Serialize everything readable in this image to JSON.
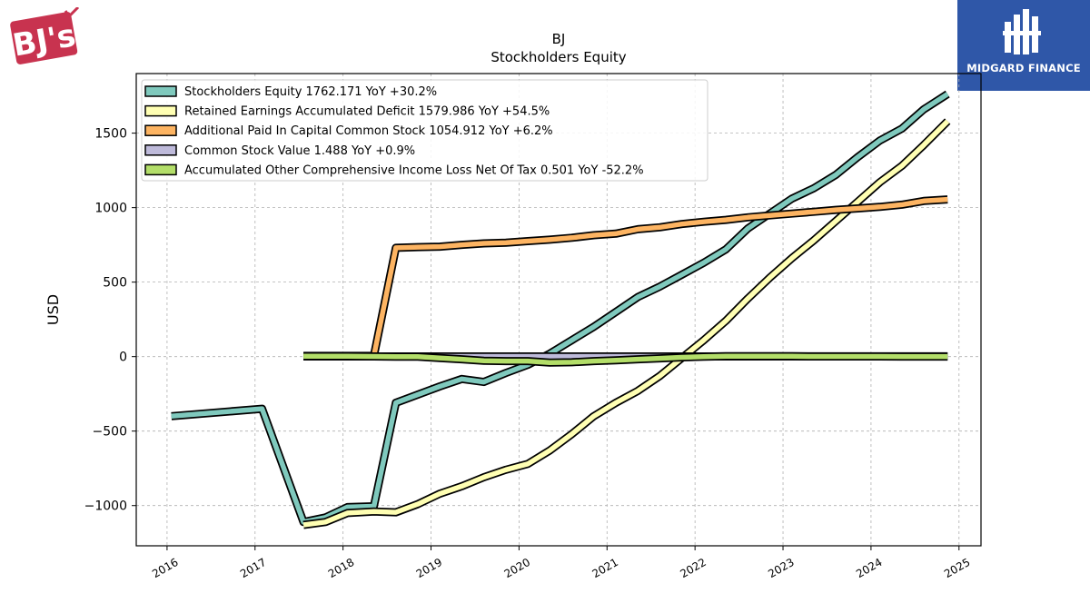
{
  "logos": {
    "left_text": "BJ's",
    "right_text": "MIDGARD FINANCE"
  },
  "chart_data": {
    "type": "line",
    "title": "BJ",
    "subtitle": "Stockholders  Equity",
    "xlabel": "",
    "ylabel": "USD",
    "xlim": [
      2015.65,
      2025.25
    ],
    "ylim": [
      -1270,
      1900
    ],
    "xticks": [
      "2016",
      "2017",
      "2018",
      "2019",
      "2020",
      "2021",
      "2022",
      "2023",
      "2024",
      "2025"
    ],
    "yticks": [
      -1000,
      -500,
      0,
      500,
      1000,
      1500
    ],
    "ytick_labels": [
      "−1000",
      "−500",
      "0",
      "500",
      "1000",
      "1500"
    ],
    "grid": true,
    "legend_position": "top-left",
    "series": [
      {
        "name": "Stockholders Equity  1762.171 YoY +30.2%",
        "color": "#7fc9bd",
        "points": [
          [
            2016.05,
            -400
          ],
          [
            2017.08,
            -350
          ],
          [
            2017.55,
            -1110
          ],
          [
            2017.8,
            -1080
          ],
          [
            2018.05,
            -1010
          ],
          [
            2018.35,
            -1005
          ],
          [
            2018.6,
            -310
          ],
          [
            2018.85,
            -255
          ],
          [
            2019.1,
            -200
          ],
          [
            2019.35,
            -150
          ],
          [
            2019.6,
            -170
          ],
          [
            2019.85,
            -110
          ],
          [
            2020.1,
            -55
          ],
          [
            2020.35,
            20
          ],
          [
            2020.6,
            110
          ],
          [
            2020.85,
            200
          ],
          [
            2021.1,
            300
          ],
          [
            2021.35,
            400
          ],
          [
            2021.6,
            470
          ],
          [
            2021.85,
            550
          ],
          [
            2022.1,
            630
          ],
          [
            2022.35,
            720
          ],
          [
            2022.6,
            860
          ],
          [
            2022.85,
            960
          ],
          [
            2023.1,
            1060
          ],
          [
            2023.35,
            1130
          ],
          [
            2023.6,
            1220
          ],
          [
            2023.85,
            1340
          ],
          [
            2024.1,
            1450
          ],
          [
            2024.35,
            1530
          ],
          [
            2024.6,
            1660
          ],
          [
            2024.87,
            1762.171
          ]
        ]
      },
      {
        "name": "Retained Earnings Accumulated Deficit  1579.986 YoY +54.5%",
        "color": "#ffffb3",
        "points": [
          [
            2017.55,
            -1130
          ],
          [
            2017.8,
            -1110
          ],
          [
            2018.05,
            -1050
          ],
          [
            2018.35,
            -1040
          ],
          [
            2018.6,
            -1045
          ],
          [
            2018.85,
            -990
          ],
          [
            2019.1,
            -920
          ],
          [
            2019.35,
            -870
          ],
          [
            2019.6,
            -810
          ],
          [
            2019.85,
            -760
          ],
          [
            2020.1,
            -720
          ],
          [
            2020.35,
            -630
          ],
          [
            2020.6,
            -520
          ],
          [
            2020.85,
            -400
          ],
          [
            2021.1,
            -310
          ],
          [
            2021.35,
            -230
          ],
          [
            2021.6,
            -130
          ],
          [
            2021.85,
            -10
          ],
          [
            2022.1,
            110
          ],
          [
            2022.35,
            240
          ],
          [
            2022.6,
            390
          ],
          [
            2022.85,
            530
          ],
          [
            2023.1,
            660
          ],
          [
            2023.35,
            780
          ],
          [
            2023.6,
            910
          ],
          [
            2023.85,
            1040
          ],
          [
            2024.1,
            1170
          ],
          [
            2024.35,
            1280
          ],
          [
            2024.6,
            1420
          ],
          [
            2024.87,
            1579.986
          ]
        ]
      },
      {
        "name": "Additional Paid In Capital Common Stock  1054.912 YoY +6.2%",
        "color": "#fdb462",
        "points": [
          [
            2017.55,
            5
          ],
          [
            2017.8,
            5
          ],
          [
            2018.05,
            5
          ],
          [
            2018.35,
            5
          ],
          [
            2018.6,
            730
          ],
          [
            2018.85,
            735
          ],
          [
            2019.1,
            738
          ],
          [
            2019.35,
            750
          ],
          [
            2019.6,
            760
          ],
          [
            2019.85,
            765
          ],
          [
            2020.1,
            775
          ],
          [
            2020.35,
            785
          ],
          [
            2020.6,
            798
          ],
          [
            2020.85,
            815
          ],
          [
            2021.1,
            825
          ],
          [
            2021.35,
            855
          ],
          [
            2021.6,
            868
          ],
          [
            2021.85,
            890
          ],
          [
            2022.1,
            905
          ],
          [
            2022.35,
            918
          ],
          [
            2022.6,
            935
          ],
          [
            2022.85,
            948
          ],
          [
            2023.1,
            960
          ],
          [
            2023.35,
            972
          ],
          [
            2023.6,
            985
          ],
          [
            2023.85,
            995
          ],
          [
            2024.1,
            1005
          ],
          [
            2024.35,
            1020
          ],
          [
            2024.6,
            1045
          ],
          [
            2024.87,
            1054.912
          ]
        ]
      },
      {
        "name": "Common Stock Value  1.488 YoY +0.9%",
        "color": "#bebada",
        "points": [
          [
            2017.55,
            1.3
          ],
          [
            2024.87,
            1.488
          ]
        ]
      },
      {
        "name": "Accumulated Other Comprehensive Income Loss Net Of Tax  0.501 YoY -52.2%",
        "color": "#b3de69",
        "points": [
          [
            2017.55,
            2
          ],
          [
            2017.8,
            3
          ],
          [
            2018.05,
            2
          ],
          [
            2018.35,
            1
          ],
          [
            2018.6,
            0
          ],
          [
            2018.85,
            0
          ],
          [
            2019.1,
            -10
          ],
          [
            2019.35,
            -18
          ],
          [
            2019.6,
            -28
          ],
          [
            2019.85,
            -30
          ],
          [
            2020.1,
            -30
          ],
          [
            2020.35,
            -40
          ],
          [
            2020.6,
            -38
          ],
          [
            2020.85,
            -30
          ],
          [
            2021.1,
            -25
          ],
          [
            2021.35,
            -18
          ],
          [
            2021.6,
            -12
          ],
          [
            2021.85,
            -5
          ],
          [
            2022.1,
            0
          ],
          [
            2022.35,
            2
          ],
          [
            2022.6,
            2
          ],
          [
            2022.85,
            2
          ],
          [
            2023.1,
            2
          ],
          [
            2023.35,
            1
          ],
          [
            2023.6,
            1
          ],
          [
            2023.85,
            1
          ],
          [
            2024.1,
            0.8
          ],
          [
            2024.35,
            0.6
          ],
          [
            2024.6,
            0.5
          ],
          [
            2024.87,
            0.501
          ]
        ]
      }
    ]
  }
}
